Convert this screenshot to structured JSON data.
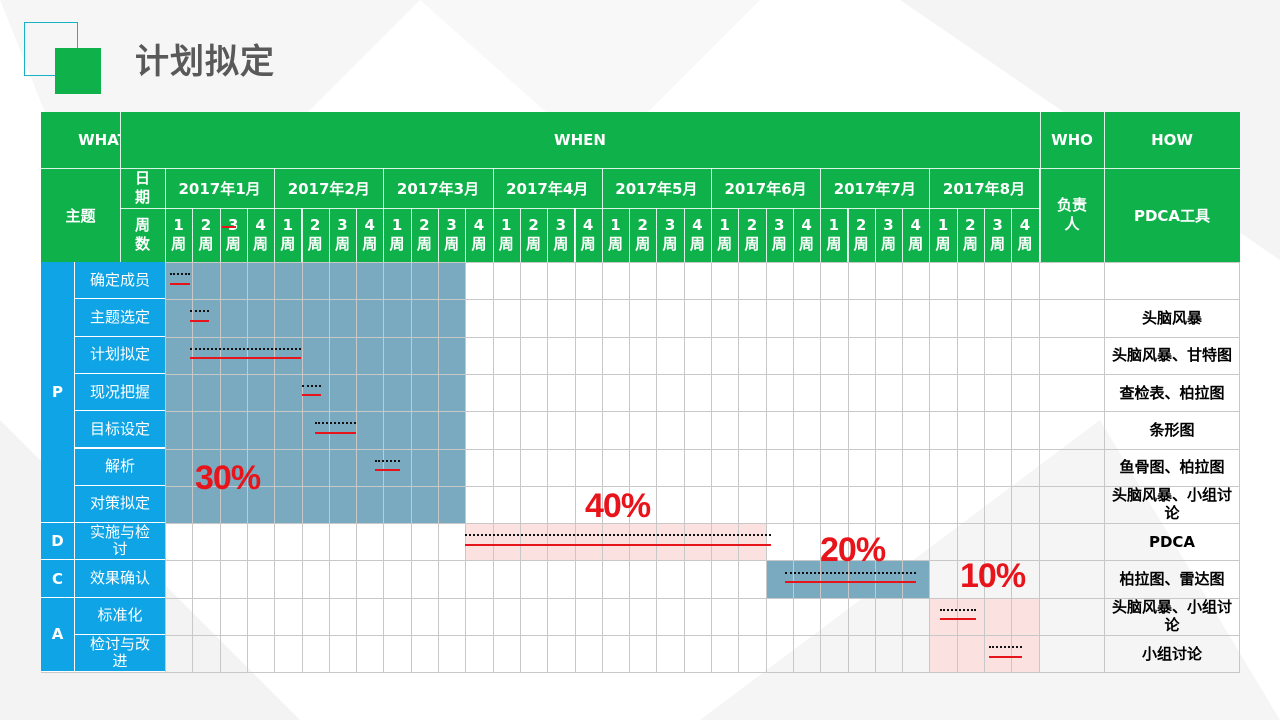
{
  "title": "计划拟定",
  "header": {
    "what": "WHAT",
    "when": "WHEN",
    "who": "WHO",
    "how": "HOW",
    "theme": "主题",
    "date_label": "日期",
    "week_label": "周数",
    "owner_label": "负责人",
    "tool_label": "PDCA工具",
    "months": [
      "2017年1月",
      "2017年2月",
      "2017年3月",
      "2017年4月",
      "2017年5月",
      "2017年6月",
      "2017年7月",
      "2017年8月"
    ],
    "week_numbers": [
      "1",
      "2",
      "3",
      "4"
    ],
    "week_unit": "周"
  },
  "phases": [
    {
      "label": "P"
    },
    {
      "label": "D"
    },
    {
      "label": "C"
    },
    {
      "label": "A"
    }
  ],
  "rows": [
    {
      "task": "确定成员",
      "tool": ""
    },
    {
      "task": "主题选定",
      "tool": "头脑风暴"
    },
    {
      "task": "计划拟定",
      "tool": "头脑风暴、甘特图"
    },
    {
      "task": "现况把握",
      "tool": "查检表、柏拉图"
    },
    {
      "task": "目标设定",
      "tool": "条形图"
    },
    {
      "task": "解析",
      "tool": "鱼骨图、柏拉图"
    },
    {
      "task": "对策拟定",
      "tool": "头脑风暴、小组讨论"
    },
    {
      "task": "实施与检讨",
      "tool": "PDCA"
    },
    {
      "task": "效果确认",
      "tool": "柏拉图、雷达图"
    },
    {
      "task": "标准化",
      "tool": "头脑风暴、小组讨论"
    },
    {
      "task": "检讨与改进",
      "tool": "小组讨论"
    }
  ],
  "percentages": {
    "plan": "30%",
    "do": "40%",
    "check": "20%",
    "act": "10%"
  },
  "colors": {
    "header_green": "#0fb14a",
    "phase_blue": "#0ea4e6",
    "plan_shade": "#7aaabf",
    "do_shade": "#fbe2e0",
    "percent_red": "#e8141b"
  }
}
